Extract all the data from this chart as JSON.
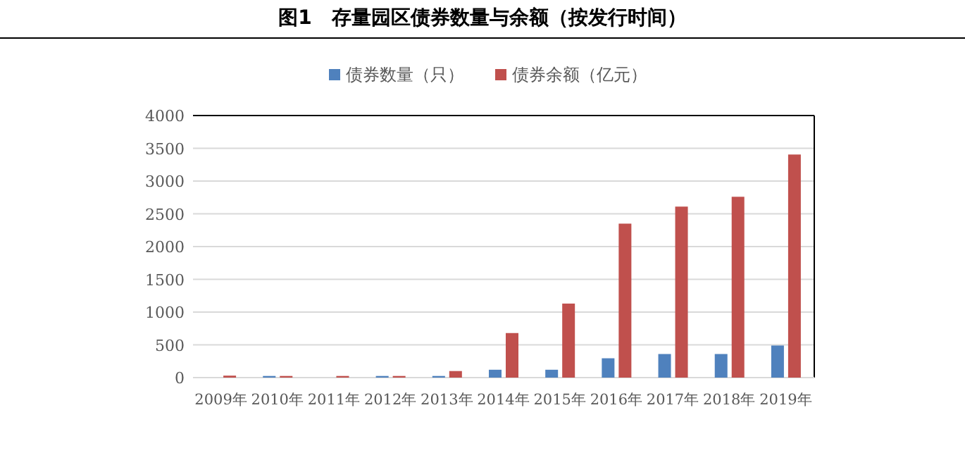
{
  "chart_data": {
    "type": "bar",
    "title": "图1　存量园区债券数量与余额（按发行时间）",
    "categories": [
      "2009年",
      "2010年",
      "2011年",
      "2012年",
      "2013年",
      "2014年",
      "2015年",
      "2016年",
      "2017年",
      "2018年",
      "2019年"
    ],
    "series": [
      {
        "name": "债券数量（只）",
        "color": "#4f81bd",
        "values": [
          null,
          25,
          null,
          25,
          25,
          120,
          120,
          295,
          360,
          360,
          490
        ]
      },
      {
        "name": "债券余额（亿元）",
        "color": "#c0504d",
        "values": [
          30,
          25,
          25,
          25,
          100,
          680,
          1130,
          2350,
          2610,
          2760,
          3405
        ]
      }
    ],
    "ylim": [
      0,
      4000
    ],
    "yticks": [
      0,
      500,
      1000,
      1500,
      2000,
      2500,
      3000,
      3500,
      4000
    ],
    "grid": "y",
    "legend": "top"
  }
}
